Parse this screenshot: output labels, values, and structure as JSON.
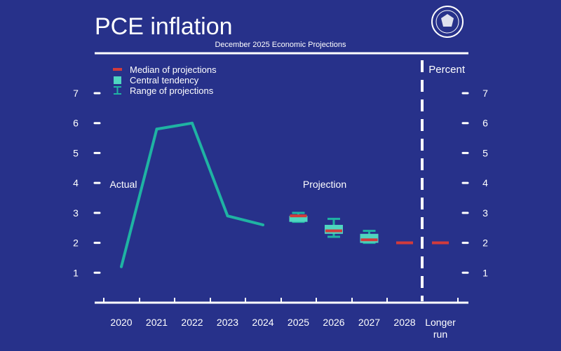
{
  "chart_data": {
    "type": "line",
    "title": "PCE inflation",
    "subtitle": "December 2025 Economic Projections",
    "ylabel": "Percent",
    "ylim": [
      0,
      7
    ],
    "yticks": [
      1,
      2,
      3,
      4,
      5,
      6,
      7
    ],
    "categories": [
      "2020",
      "2021",
      "2022",
      "2023",
      "2024",
      "2025",
      "2026",
      "2027",
      "2028",
      "Longer run"
    ],
    "annotations": {
      "actual": "Actual",
      "projection": "Projection"
    },
    "legend": {
      "position": "top-left",
      "entries": [
        {
          "key": "median",
          "label": "Median of projections"
        },
        {
          "key": "central",
          "label": "Central tendency"
        },
        {
          "key": "range",
          "label": "Range of projections"
        }
      ]
    },
    "actual": {
      "name": "Actual",
      "x": [
        "2020",
        "2021",
        "2022",
        "2023",
        "2024"
      ],
      "values": [
        1.2,
        5.8,
        6.0,
        2.9,
        2.6
      ]
    },
    "projections": [
      {
        "x": "2025",
        "median": 2.9,
        "central": [
          2.7,
          2.9
        ],
        "range": [
          2.7,
          3.0
        ]
      },
      {
        "x": "2026",
        "median": 2.4,
        "central": [
          2.3,
          2.6
        ],
        "range": [
          2.2,
          2.8
        ]
      },
      {
        "x": "2027",
        "median": 2.1,
        "central": [
          2.0,
          2.3
        ],
        "range": [
          2.0,
          2.4
        ]
      },
      {
        "x": "2028",
        "median": 2.0
      },
      {
        "x": "Longer run",
        "median": 2.0
      }
    ],
    "colors": {
      "background": "#27318a",
      "actual_line": "#1fb3a3",
      "median": "#d23b3b",
      "central": "#4fd6c0",
      "range": "#1fb3a3",
      "axis": "#ffffff"
    }
  }
}
